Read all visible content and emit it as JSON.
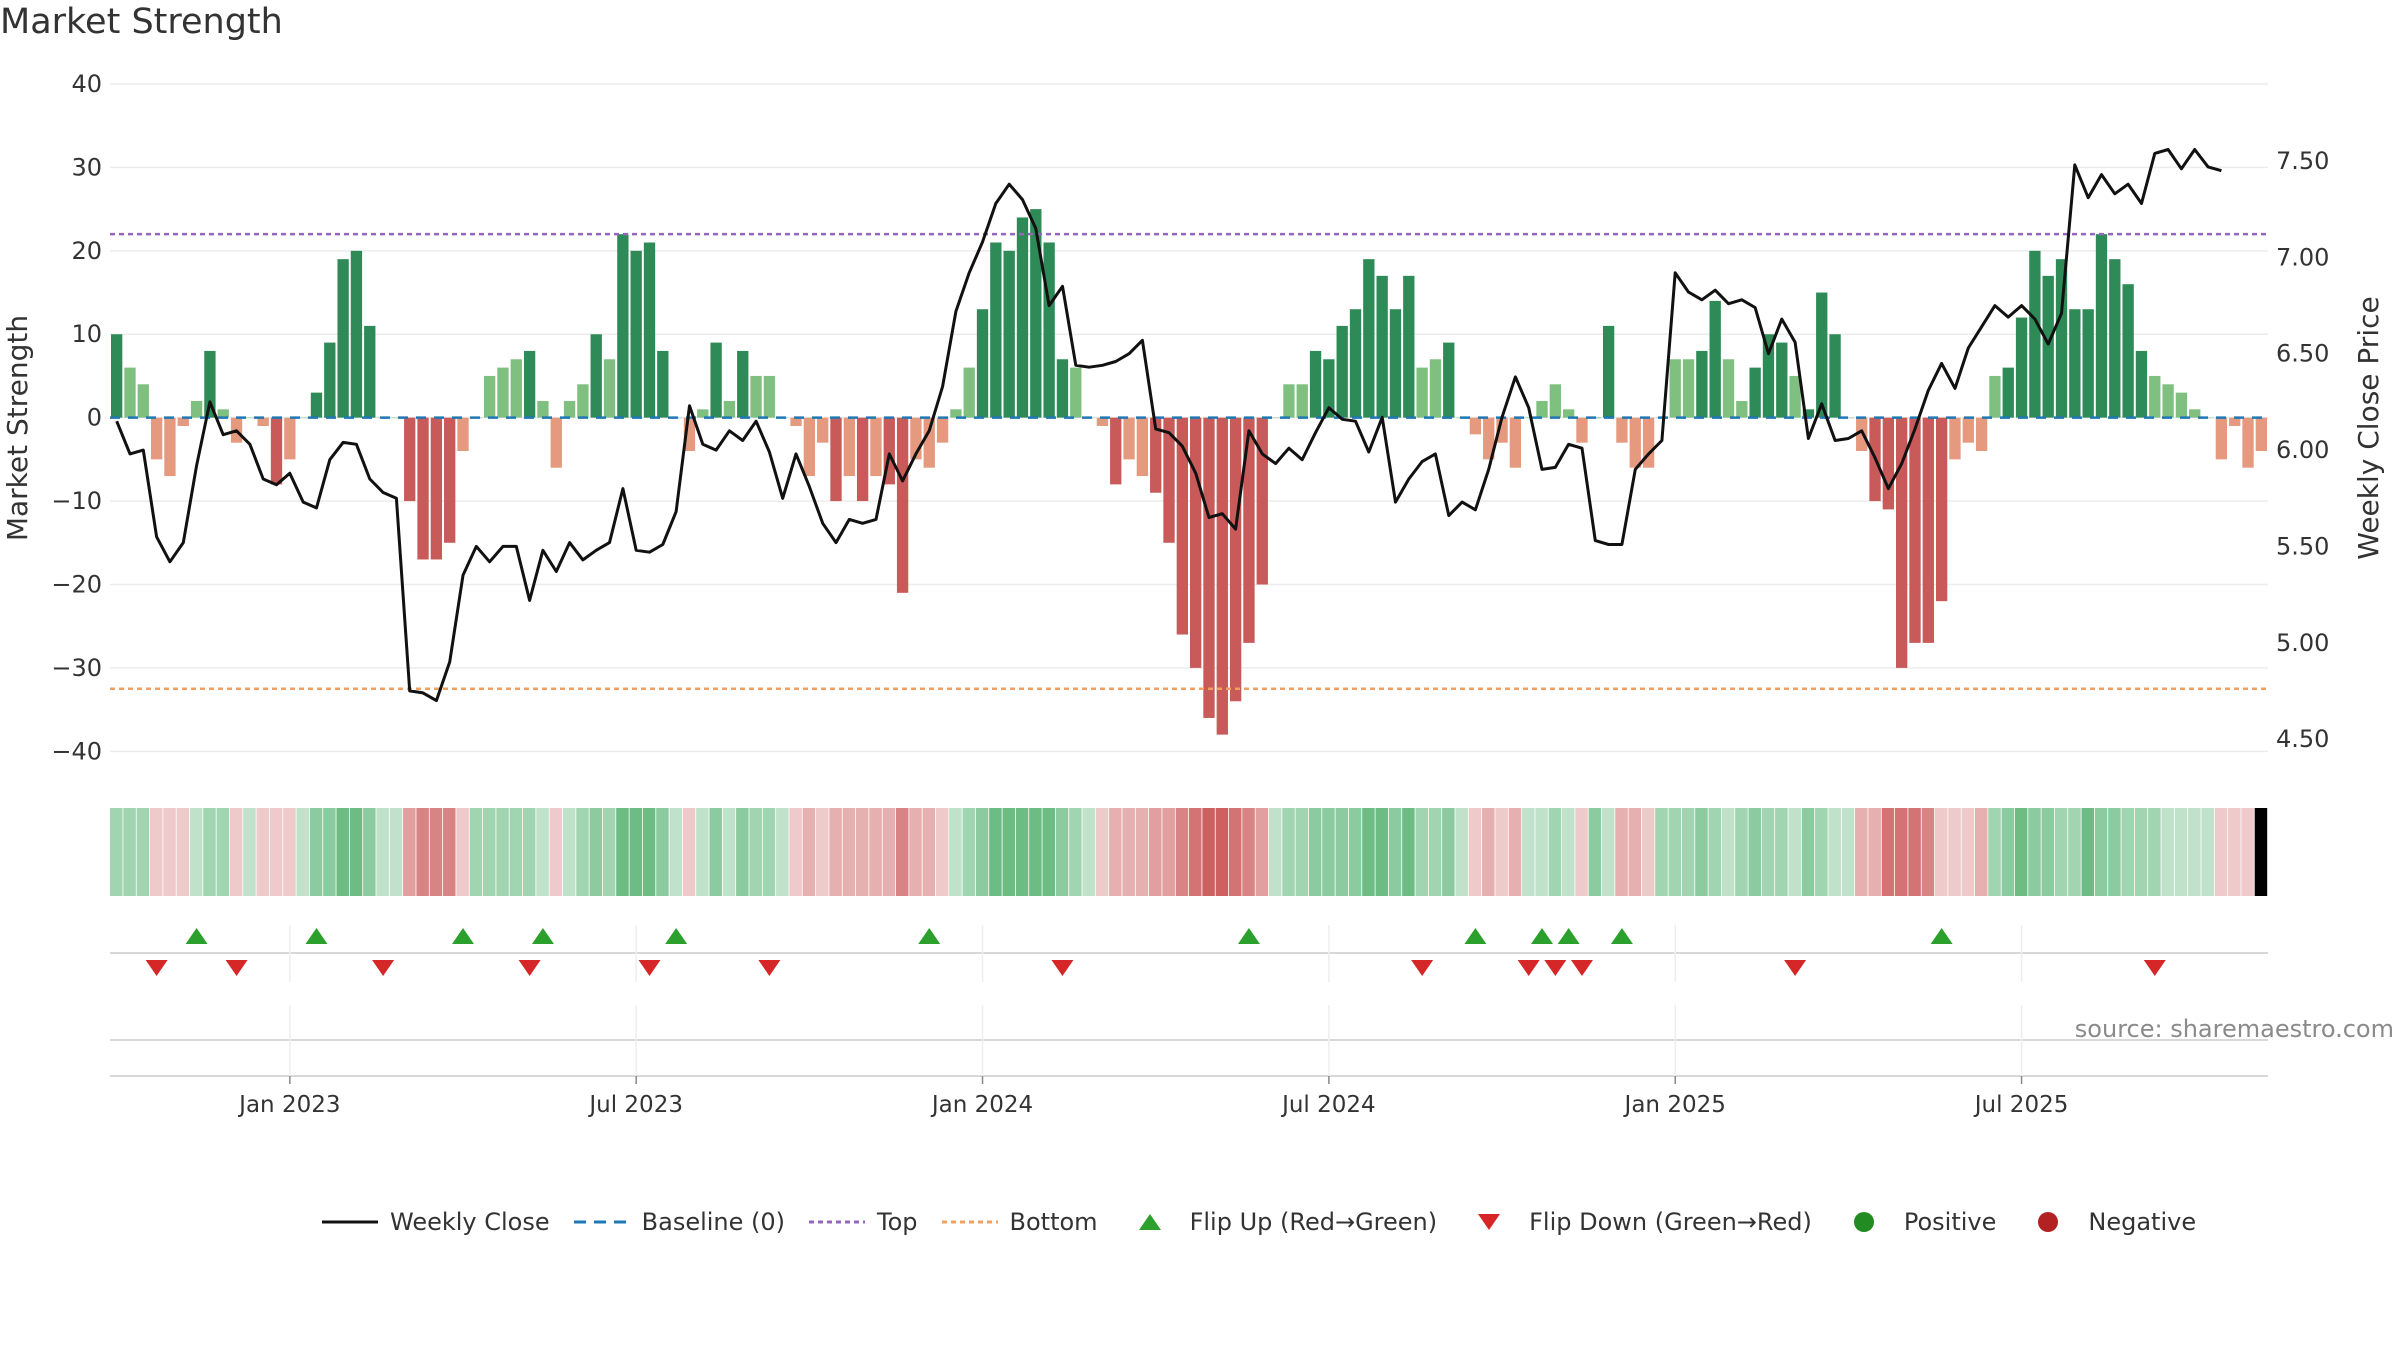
{
  "title": "Market Strength",
  "source": "source: sharemaestro.com",
  "colors": {
    "strong_green": "#2e8b57",
    "light_green": "#7fc081",
    "strong_red": "#c85a5a",
    "light_red": "#e59a7f",
    "line": "#111111",
    "baseline": "#1f77b4",
    "top": "#9467bd",
    "bottom": "#f0a060",
    "flip_up": "#2ca02c",
    "flip_down": "#d62728",
    "positive": "#228b22",
    "negative": "#b22222"
  },
  "legend": [
    {
      "id": "line",
      "label": "Weekly Close"
    },
    {
      "id": "baseline",
      "label": "Baseline (0)"
    },
    {
      "id": "top",
      "label": "Top"
    },
    {
      "id": "bottom",
      "label": "Bottom"
    },
    {
      "id": "flip_up",
      "label": "Flip Up (Red→Green)"
    },
    {
      "id": "flip_down",
      "label": "Flip Down (Green→Red)"
    },
    {
      "id": "positive",
      "label": "Positive"
    },
    {
      "id": "negative",
      "label": "Negative"
    }
  ],
  "chart_data": {
    "type": "bar",
    "title": "Market Strength",
    "ylabel": "Market Strength",
    "y2label": "Weekly Close Price",
    "ylim": [
      -42,
      40
    ],
    "y2lim": [
      4.35,
      7.9
    ],
    "yticks": [
      40,
      30,
      20,
      10,
      0,
      -10,
      -20,
      -30,
      -40
    ],
    "yticks_labels": [
      "40",
      "30",
      "20",
      "10",
      "0",
      "−10",
      "−20",
      "−30",
      "−40"
    ],
    "y2ticks": [
      7.5,
      7.0,
      6.5,
      6.0,
      5.5,
      5.0,
      4.5
    ],
    "y2ticks_labels": [
      "7.50",
      "7.00",
      "6.50",
      "6.00",
      "5.50",
      "5.00",
      "4.50"
    ],
    "week_start": "2022-10-03",
    "xticks": [
      {
        "week": 13,
        "label": "Jan 2023"
      },
      {
        "week": 39,
        "label": "Jul 2023"
      },
      {
        "week": 65,
        "label": "Jan 2024"
      },
      {
        "week": 91,
        "label": "Jul 2024"
      },
      {
        "week": 117,
        "label": "Jan 2025"
      },
      {
        "week": 143,
        "label": "Jul 2025"
      }
    ],
    "top_line": 22,
    "bottom_line": -32.5,
    "baseline": 0,
    "strength": [
      10,
      6,
      4,
      -5,
      -7,
      -1,
      2,
      8,
      1,
      -3,
      0,
      -1,
      -8,
      -5,
      0,
      3,
      9,
      19,
      20,
      11,
      0,
      0,
      -10,
      -17,
      -17,
      -15,
      -4,
      0,
      5,
      6,
      7,
      8,
      2,
      -6,
      2,
      4,
      10,
      7,
      22,
      20,
      21,
      8,
      0,
      -4,
      1,
      9,
      2,
      8,
      5,
      5,
      0,
      -1,
      -7,
      -3,
      -10,
      -7,
      -10,
      -7,
      -8,
      -21,
      -5,
      -6,
      -3,
      1,
      6,
      13,
      21,
      20,
      24,
      25,
      21,
      7,
      6,
      0,
      -1,
      -8,
      -5,
      -7,
      -9,
      -15,
      -26,
      -30,
      -36,
      -38,
      -34,
      -27,
      -20,
      0,
      4,
      4,
      8,
      7,
      11,
      13,
      19,
      17,
      13,
      17,
      6,
      7,
      9,
      0,
      -2,
      -5,
      -3,
      -6,
      0,
      2,
      4,
      1,
      -3,
      0,
      11,
      -3,
      -6,
      -6,
      0,
      7,
      7,
      8,
      14,
      7,
      2,
      6,
      10,
      9,
      5,
      1,
      15,
      10,
      0,
      -4,
      -10,
      -11,
      -30,
      -27,
      -27,
      -22,
      -5,
      -3,
      -4,
      5,
      6,
      12,
      20,
      17,
      19,
      13,
      13,
      22,
      19,
      16,
      8,
      5,
      4,
      3,
      1,
      0,
      -5,
      -1,
      -6,
      -4
    ],
    "close": [
      6.15,
      5.98,
      6.0,
      5.55,
      5.42,
      5.52,
      5.92,
      6.25,
      6.08,
      6.1,
      6.03,
      5.85,
      5.82,
      5.88,
      5.73,
      5.7,
      5.95,
      6.04,
      6.03,
      5.85,
      5.78,
      5.75,
      4.75,
      4.74,
      4.7,
      4.9,
      5.35,
      5.5,
      5.42,
      5.5,
      5.5,
      5.22,
      5.48,
      5.37,
      5.52,
      5.43,
      5.48,
      5.52,
      5.8,
      5.48,
      5.47,
      5.51,
      5.68,
      6.23,
      6.03,
      6.0,
      6.1,
      6.05,
      6.15,
      5.99,
      5.75,
      5.98,
      5.81,
      5.62,
      5.52,
      5.64,
      5.62,
      5.64,
      5.98,
      5.84,
      5.98,
      6.1,
      6.33,
      6.72,
      6.92,
      7.08,
      7.28,
      7.38,
      7.3,
      7.15,
      6.75,
      6.85,
      6.44,
      6.43,
      6.44,
      6.46,
      6.5,
      6.57,
      6.11,
      6.09,
      6.02,
      5.88,
      5.65,
      5.67,
      5.59,
      6.1,
      5.98,
      5.93,
      6.01,
      5.95,
      6.09,
      6.22,
      6.16,
      6.15,
      5.99,
      6.17,
      5.73,
      5.85,
      5.94,
      5.98,
      5.66,
      5.73,
      5.69,
      5.9,
      6.17,
      6.38,
      6.22,
      5.9,
      5.91,
      6.03,
      6.01,
      5.53,
      5.51,
      5.51,
      5.9,
      5.98,
      6.05,
      6.92,
      6.82,
      6.78,
      6.83,
      6.76,
      6.78,
      6.74,
      6.5,
      6.68,
      6.56,
      6.06,
      6.24,
      6.05,
      6.06,
      6.1,
      5.96,
      5.8,
      5.93,
      6.11,
      6.31,
      6.45,
      6.32,
      6.53,
      6.64,
      6.75,
      6.69,
      6.75,
      6.68,
      6.55,
      6.71,
      7.48,
      7.31,
      7.43,
      7.33,
      7.38,
      7.28,
      7.54,
      7.56,
      7.46,
      7.56,
      7.47,
      7.45
    ],
    "flip_up_weeks": [
      6,
      15,
      26,
      32,
      42,
      61,
      85,
      102,
      107,
      109,
      113,
      137
    ],
    "flip_down_weeks": [
      3,
      9,
      20,
      31,
      40,
      49,
      71,
      98,
      106,
      108,
      110,
      126,
      153
    ],
    "intensity_bands": [
      0.45,
      0.45,
      0.45,
      0.3,
      0.3,
      0.3,
      0.3,
      0.45,
      0.45,
      0.3,
      0.3,
      0.3,
      0.3,
      0.3,
      0.3,
      0.55,
      0.55,
      0.7,
      0.7,
      0.55,
      0.3,
      0.3,
      0.55,
      0.7,
      0.7,
      0.7,
      0.3,
      0.45,
      0.45,
      0.45,
      0.45,
      0.45,
      0.3,
      0.3,
      0.3,
      0.45,
      0.55,
      0.45,
      0.7,
      0.7,
      0.7,
      0.55,
      0.3,
      0.3,
      0.3,
      0.55,
      0.3,
      0.55,
      0.45,
      0.45,
      0.3,
      0.3,
      0.45,
      0.3,
      0.45,
      0.45,
      0.45,
      0.45,
      0.45,
      0.7,
      0.45,
      0.45,
      0.3,
      0.3,
      0.45,
      0.55,
      0.7,
      0.7,
      0.7,
      0.7,
      0.7,
      0.55,
      0.45,
      0.3,
      0.3,
      0.45,
      0.45,
      0.45,
      0.55,
      0.55,
      0.7,
      0.8,
      0.9,
      0.9,
      0.8,
      0.7,
      0.55,
      0.3,
      0.45,
      0.45,
      0.55,
      0.55,
      0.55,
      0.55,
      0.7,
      0.7,
      0.55,
      0.7,
      0.45,
      0.45,
      0.55,
      0.3,
      0.3,
      0.45,
      0.3,
      0.45,
      0.3,
      0.3,
      0.45,
      0.3,
      0.3,
      0.55,
      0.3,
      0.45,
      0.45,
      0.3,
      0.45,
      0.45,
      0.45,
      0.55,
      0.45,
      0.3,
      0.45,
      0.55,
      0.45,
      0.45,
      0.3,
      0.55,
      0.45,
      0.3,
      0.3,
      0.45,
      0.45,
      0.8,
      0.8,
      0.8,
      0.7,
      0.3,
      0.3,
      0.3,
      0.45,
      0.45,
      0.55,
      0.7,
      0.55,
      0.55,
      0.45,
      0.45,
      0.7,
      0.55,
      0.55,
      0.45,
      0.45,
      0.45,
      0.3,
      0.3,
      0.3,
      0.3,
      0.3,
      0.3,
      0.3
    ]
  }
}
